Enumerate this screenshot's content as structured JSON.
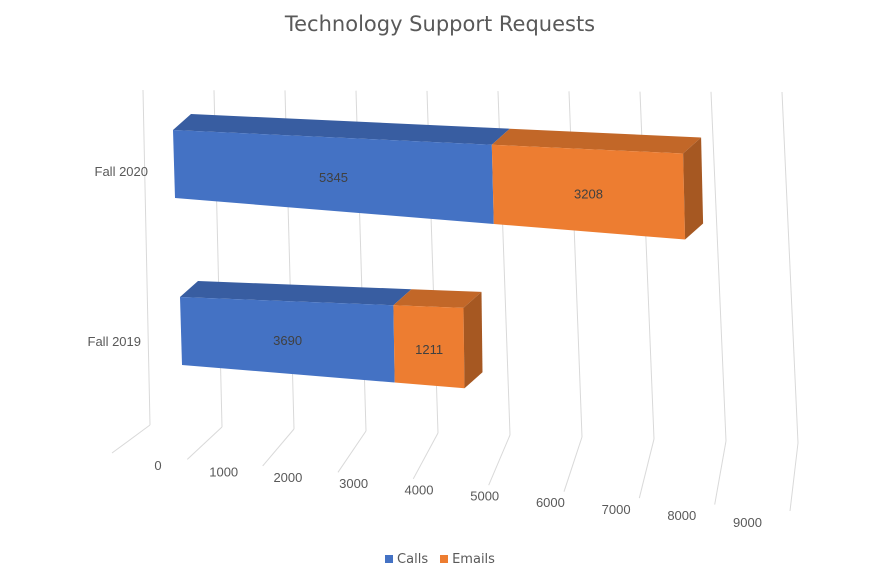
{
  "chart_data": {
    "type": "bar",
    "orientation": "horizontal",
    "stacked": true,
    "three_d": true,
    "title": "Technology Support Requests",
    "categories": [
      "Fall 2019",
      "Fall 2020"
    ],
    "series": [
      {
        "name": "Calls",
        "values": [
          3690,
          5345
        ],
        "color": "#4472C4"
      },
      {
        "name": "Emails",
        "values": [
          1211,
          3208
        ],
        "color": "#ED7D31"
      }
    ],
    "xlim": [
      0,
      9000
    ],
    "x_ticks": [
      "0",
      "1000",
      "2000",
      "3000",
      "4000",
      "5000",
      "6000",
      "7000",
      "8000",
      "9000"
    ],
    "grid": true,
    "legend_position": "bottom"
  }
}
